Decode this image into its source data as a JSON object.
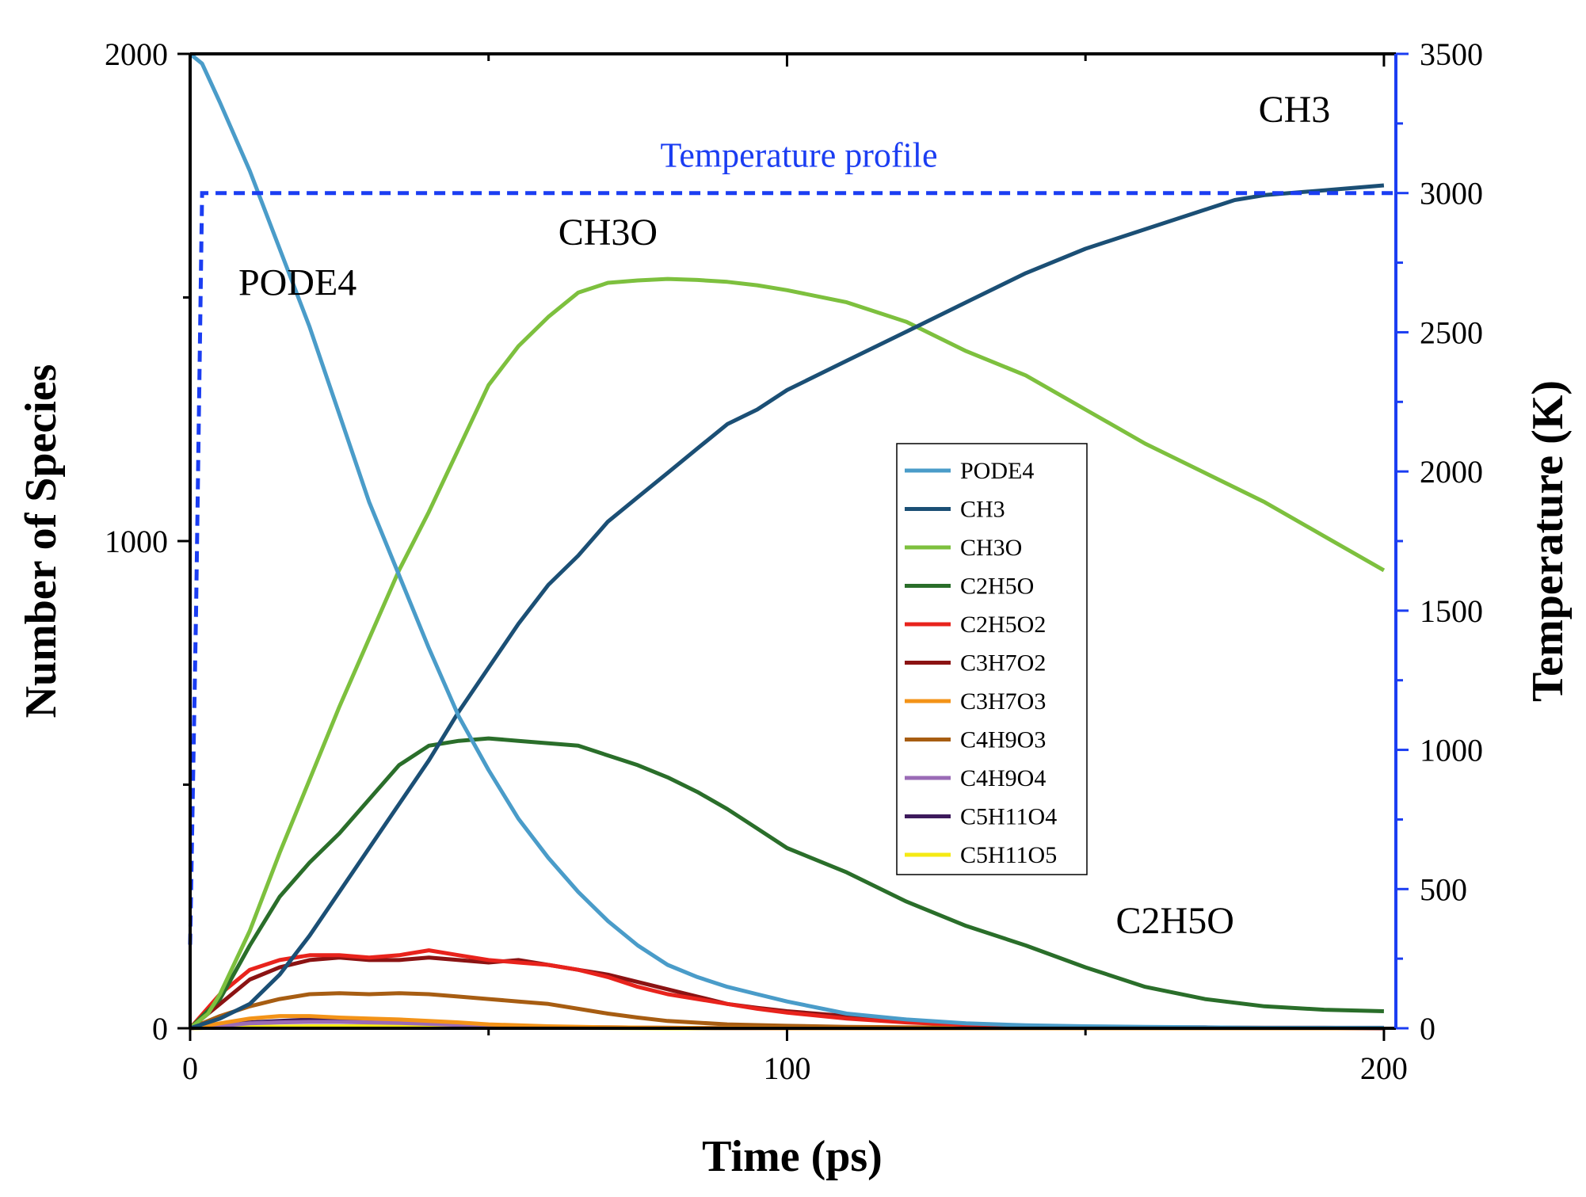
{
  "chart_data": {
    "type": "line",
    "title": "",
    "xlabel": "Time (ps)",
    "ylabel": "Number of Species",
    "y2label": "Temperature (K)",
    "xlim": [
      0,
      202
    ],
    "ylim": [
      0,
      2000
    ],
    "y2lim": [
      0,
      3500
    ],
    "xticks": [
      0,
      100,
      200
    ],
    "yticks": [
      0,
      1000,
      2000
    ],
    "y2ticks": [
      0,
      500,
      1000,
      1500,
      2000,
      2500,
      3000,
      3500
    ],
    "legend_position": "center-right",
    "series": [
      {
        "name": "PODE4",
        "color": "#4a9cc9",
        "x": [
          0,
          2,
          5,
          10,
          15,
          20,
          25,
          30,
          35,
          40,
          45,
          50,
          55,
          60,
          65,
          70,
          75,
          80,
          85,
          90,
          95,
          100,
          110,
          120,
          130,
          140,
          150,
          160,
          170,
          180,
          190,
          200
        ],
        "y": [
          2000,
          1980,
          1900,
          1760,
          1600,
          1440,
          1260,
          1080,
          930,
          780,
          640,
          530,
          430,
          350,
          280,
          220,
          170,
          130,
          105,
          85,
          70,
          55,
          30,
          18,
          10,
          6,
          4,
          3,
          2,
          1,
          1,
          1
        ]
      },
      {
        "name": "CH3",
        "color": "#1b4f75",
        "x": [
          0,
          5,
          10,
          15,
          20,
          25,
          30,
          35,
          40,
          45,
          50,
          55,
          60,
          65,
          70,
          75,
          80,
          85,
          90,
          95,
          100,
          110,
          120,
          130,
          140,
          150,
          160,
          170,
          175,
          180,
          190,
          200
        ],
        "y": [
          0,
          20,
          50,
          110,
          190,
          280,
          370,
          460,
          550,
          650,
          740,
          830,
          910,
          970,
          1040,
          1090,
          1140,
          1190,
          1240,
          1270,
          1310,
          1370,
          1430,
          1490,
          1550,
          1600,
          1640,
          1680,
          1700,
          1710,
          1720,
          1730
        ]
      },
      {
        "name": "CH3O",
        "color": "#7dc03e",
        "x": [
          0,
          3,
          5,
          10,
          15,
          20,
          25,
          30,
          35,
          40,
          45,
          50,
          55,
          60,
          65,
          70,
          75,
          80,
          85,
          90,
          95,
          100,
          110,
          120,
          130,
          140,
          150,
          160,
          170,
          180,
          190,
          200
        ],
        "y": [
          0,
          30,
          70,
          200,
          360,
          510,
          660,
          800,
          940,
          1060,
          1190,
          1320,
          1400,
          1460,
          1510,
          1530,
          1535,
          1538,
          1536,
          1532,
          1525,
          1515,
          1490,
          1450,
          1390,
          1340,
          1270,
          1200,
          1140,
          1080,
          1010,
          940
        ]
      },
      {
        "name": "C2H5O",
        "color": "#2a6e2a",
        "x": [
          0,
          5,
          10,
          15,
          20,
          25,
          30,
          35,
          40,
          45,
          50,
          55,
          60,
          65,
          70,
          75,
          80,
          85,
          90,
          95,
          100,
          110,
          120,
          130,
          140,
          150,
          160,
          170,
          180,
          190,
          200
        ],
        "y": [
          0,
          60,
          170,
          270,
          340,
          400,
          470,
          540,
          580,
          590,
          595,
          590,
          585,
          580,
          560,
          540,
          515,
          485,
          450,
          410,
          370,
          320,
          260,
          210,
          170,
          125,
          85,
          60,
          45,
          38,
          35
        ]
      },
      {
        "name": "C2H5O2",
        "color": "#e8231c",
        "x": [
          0,
          5,
          10,
          15,
          20,
          25,
          30,
          35,
          40,
          45,
          50,
          55,
          60,
          65,
          70,
          75,
          80,
          85,
          90,
          95,
          100,
          110,
          120,
          130,
          140,
          150,
          160,
          170,
          180,
          190,
          200
        ],
        "y": [
          0,
          70,
          120,
          140,
          150,
          150,
          145,
          150,
          160,
          150,
          140,
          135,
          130,
          120,
          105,
          85,
          70,
          60,
          50,
          40,
          32,
          20,
          12,
          7,
          4,
          3,
          2,
          2,
          1,
          1,
          1
        ]
      },
      {
        "name": "C3H7O2",
        "color": "#8b1313",
        "x": [
          0,
          5,
          10,
          15,
          20,
          25,
          30,
          35,
          40,
          45,
          50,
          55,
          60,
          65,
          70,
          75,
          80,
          85,
          90,
          95,
          100,
          110,
          120,
          130,
          140,
          150,
          160,
          170,
          180,
          190,
          200
        ],
        "y": [
          0,
          50,
          100,
          125,
          140,
          145,
          140,
          140,
          145,
          140,
          135,
          140,
          130,
          120,
          110,
          95,
          80,
          65,
          50,
          42,
          35,
          25,
          15,
          8,
          5,
          3,
          2,
          1,
          1,
          1,
          0
        ]
      },
      {
        "name": "C3H7O3",
        "color": "#f39318",
        "x": [
          0,
          5,
          10,
          15,
          20,
          25,
          30,
          35,
          40,
          45,
          50,
          55,
          60,
          70,
          80,
          100,
          120,
          150,
          200
        ],
        "y": [
          0,
          10,
          20,
          25,
          25,
          22,
          20,
          18,
          15,
          12,
          8,
          6,
          4,
          2,
          1,
          0,
          0,
          0,
          0
        ]
      },
      {
        "name": "C4H9O3",
        "color": "#a75d12",
        "x": [
          0,
          5,
          10,
          15,
          20,
          25,
          30,
          35,
          40,
          45,
          50,
          55,
          60,
          65,
          70,
          75,
          80,
          90,
          100,
          110,
          120,
          140,
          160,
          200
        ],
        "y": [
          0,
          25,
          45,
          60,
          70,
          72,
          70,
          72,
          70,
          65,
          60,
          55,
          50,
          40,
          30,
          22,
          15,
          8,
          5,
          3,
          2,
          1,
          0,
          0
        ]
      },
      {
        "name": "C4H9O4",
        "color": "#9a6bb6",
        "x": [
          0,
          5,
          10,
          15,
          20,
          25,
          30,
          35,
          40,
          45,
          50,
          60,
          80,
          100,
          150,
          200
        ],
        "y": [
          0,
          5,
          10,
          12,
          13,
          13,
          12,
          11,
          9,
          7,
          5,
          3,
          1,
          0,
          0,
          0
        ]
      },
      {
        "name": "C5H11O4",
        "color": "#3d1a5c",
        "x": [
          0,
          5,
          10,
          15,
          20,
          25,
          30,
          35,
          40,
          45,
          50,
          60,
          80,
          100,
          150,
          200
        ],
        "y": [
          0,
          6,
          12,
          15,
          18,
          20,
          18,
          16,
          12,
          9,
          6,
          3,
          1,
          0,
          0,
          0
        ]
      },
      {
        "name": "C5H11O5",
        "color": "#f5ea14",
        "x": [
          0,
          10,
          20,
          30,
          40,
          50,
          60,
          80,
          100,
          150,
          200
        ],
        "y": [
          0,
          3,
          4,
          4,
          3,
          2,
          1,
          0,
          0,
          0,
          0
        ]
      }
    ],
    "temperature_profile": {
      "name": "Temperature profile",
      "color": "#1b3df2",
      "x": [
        0,
        1,
        2,
        202
      ],
      "y": [
        300,
        1500,
        3000,
        3000
      ]
    },
    "annotations": [
      {
        "text": "PODE4",
        "x": 18,
        "y": 1505
      },
      {
        "text": "CH3O",
        "x": 70,
        "y": 1608
      },
      {
        "text": "CH3",
        "x": 185,
        "y": 1860
      },
      {
        "text": "C2H5O",
        "x": 165,
        "y": 195
      },
      {
        "text": "Temperature profile",
        "x": 102,
        "y": 1768
      }
    ]
  }
}
